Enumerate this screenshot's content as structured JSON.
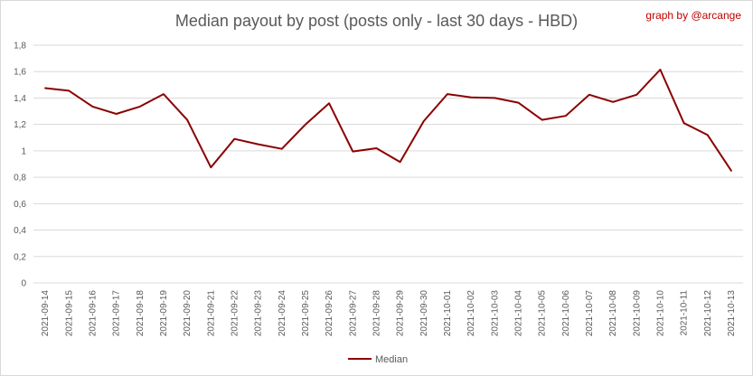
{
  "chart_data": {
    "type": "line",
    "title": "Median payout by post (posts only - last 30 days - HBD)",
    "credit": "graph by @arcange",
    "x": [
      "2021-09-14",
      "2021-09-15",
      "2021-09-16",
      "2021-09-17",
      "2021-09-18",
      "2021-09-19",
      "2021-09-20",
      "2021-09-21",
      "2021-09-22",
      "2021-09-23",
      "2021-09-24",
      "2021-09-25",
      "2021-09-26",
      "2021-09-27",
      "2021-09-28",
      "2021-09-29",
      "2021-09-30",
      "2021-10-01",
      "2021-10-02",
      "2021-10-03",
      "2021-10-04",
      "2021-10-05",
      "2021-10-06",
      "2021-10-07",
      "2021-10-08",
      "2021-10-09",
      "2021-10-10",
      "2021-10-11",
      "2021-10-12",
      "2021-10-13"
    ],
    "series": [
      {
        "name": "Median",
        "color": "#8b0000",
        "values": [
          1.475,
          1.455,
          1.335,
          1.28,
          1.335,
          1.43,
          1.235,
          0.875,
          1.09,
          1.05,
          1.015,
          1.2,
          1.36,
          0.995,
          1.02,
          0.915,
          1.225,
          1.43,
          1.405,
          1.4,
          1.365,
          1.235,
          1.265,
          1.425,
          1.37,
          1.425,
          1.615,
          1.21,
          1.12,
          0.85
        ]
      }
    ],
    "ylim": [
      0,
      1.8
    ],
    "yticks": [
      "0",
      "0,2",
      "0,4",
      "0,6",
      "0,8",
      "1",
      "1,2",
      "1,4",
      "1,6",
      "1,8"
    ],
    "grid": true,
    "legend": "bottom"
  }
}
